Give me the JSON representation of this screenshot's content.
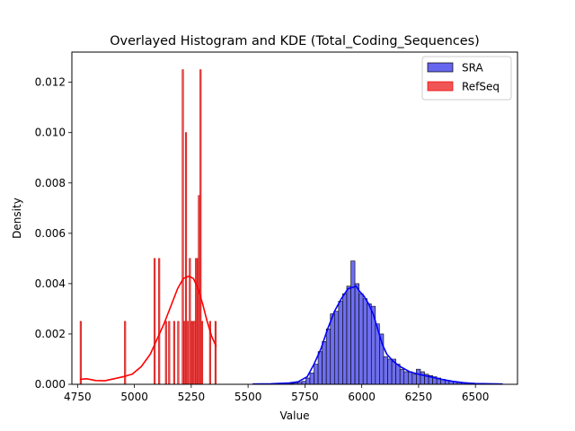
{
  "chart_data": {
    "type": "histogram+kde",
    "title": "Overlayed Histogram and KDE (Total_Coding_Sequences)",
    "xlabel": "Value",
    "ylabel": "Density",
    "xlim": [
      4725,
      6685
    ],
    "ylim": [
      0,
      0.0132
    ],
    "xticks": [
      4750,
      5000,
      5250,
      5500,
      5750,
      6000,
      6250,
      6500
    ],
    "xtick_labels": [
      "4750",
      "5000",
      "5250",
      "5500",
      "5750",
      "6000",
      "6250",
      "6500"
    ],
    "yticks": [
      0,
      0.002,
      0.004,
      0.006,
      0.008,
      0.01,
      0.012
    ],
    "ytick_labels": [
      "0.000",
      "0.002",
      "0.004",
      "0.006",
      "0.008",
      "0.010",
      "0.012"
    ],
    "grid": false,
    "legend_position": "top-right",
    "series": [
      {
        "name": "SRA",
        "color": "#0000ff",
        "bar_fill": "#6666ee",
        "bin_width": 18,
        "bins": [
          {
            "x0": 5520,
            "density": 1e-05
          },
          {
            "x0": 5538,
            "density": 1e-05
          },
          {
            "x0": 5556,
            "density": 1e-05
          },
          {
            "x0": 5574,
            "density": 1e-05
          },
          {
            "x0": 5592,
            "density": 1e-05
          },
          {
            "x0": 5610,
            "density": 1e-05
          },
          {
            "x0": 5628,
            "density": 1e-05
          },
          {
            "x0": 5646,
            "density": 2e-05
          },
          {
            "x0": 5664,
            "density": 2e-05
          },
          {
            "x0": 5682,
            "density": 3e-05
          },
          {
            "x0": 5700,
            "density": 5e-05
          },
          {
            "x0": 5718,
            "density": 8e-05
          },
          {
            "x0": 5736,
            "density": 0.00012
          },
          {
            "x0": 5754,
            "density": 0.00025
          },
          {
            "x0": 5772,
            "density": 0.00045
          },
          {
            "x0": 5790,
            "density": 0.0008
          },
          {
            "x0": 5808,
            "density": 0.0013
          },
          {
            "x0": 5826,
            "density": 0.0017
          },
          {
            "x0": 5844,
            "density": 0.0022
          },
          {
            "x0": 5862,
            "density": 0.0028
          },
          {
            "x0": 5880,
            "density": 0.0029
          },
          {
            "x0": 5898,
            "density": 0.0033
          },
          {
            "x0": 5916,
            "density": 0.0036
          },
          {
            "x0": 5934,
            "density": 0.0039
          },
          {
            "x0": 5952,
            "density": 0.0049
          },
          {
            "x0": 5970,
            "density": 0.004
          },
          {
            "x0": 5988,
            "density": 0.0036
          },
          {
            "x0": 6006,
            "density": 0.0034
          },
          {
            "x0": 6024,
            "density": 0.0032
          },
          {
            "x0": 6042,
            "density": 0.0031
          },
          {
            "x0": 6060,
            "density": 0.0024
          },
          {
            "x0": 6078,
            "density": 0.002
          },
          {
            "x0": 6096,
            "density": 0.0011
          },
          {
            "x0": 6114,
            "density": 0.001
          },
          {
            "x0": 6132,
            "density": 0.001
          },
          {
            "x0": 6150,
            "density": 0.0008
          },
          {
            "x0": 6168,
            "density": 0.0006
          },
          {
            "x0": 6186,
            "density": 0.0005
          },
          {
            "x0": 6204,
            "density": 0.0005
          },
          {
            "x0": 6222,
            "density": 0.0004
          },
          {
            "x0": 6240,
            "density": 0.0006
          },
          {
            "x0": 6258,
            "density": 0.0005
          },
          {
            "x0": 6276,
            "density": 0.0004
          },
          {
            "x0": 6294,
            "density": 0.00035
          },
          {
            "x0": 6312,
            "density": 0.0003
          },
          {
            "x0": 6330,
            "density": 0.00025
          },
          {
            "x0": 6348,
            "density": 0.0002
          },
          {
            "x0": 6366,
            "density": 0.00015
          },
          {
            "x0": 6384,
            "density": 0.00012
          },
          {
            "x0": 6402,
            "density": 0.0001
          },
          {
            "x0": 6420,
            "density": 8e-05
          },
          {
            "x0": 6438,
            "density": 7e-05
          },
          {
            "x0": 6456,
            "density": 6e-05
          },
          {
            "x0": 6474,
            "density": 5e-05
          },
          {
            "x0": 6492,
            "density": 4e-05
          },
          {
            "x0": 6510,
            "density": 3e-05
          },
          {
            "x0": 6528,
            "density": 3e-05
          },
          {
            "x0": 6546,
            "density": 2e-05
          },
          {
            "x0": 6564,
            "density": 2e-05
          },
          {
            "x0": 6582,
            "density": 1e-05
          },
          {
            "x0": 6600,
            "density": 1e-05
          }
        ],
        "kde": [
          [
            5520,
            1e-05
          ],
          [
            5600,
            2e-05
          ],
          [
            5680,
            5e-05
          ],
          [
            5720,
            0.0001
          ],
          [
            5760,
            0.0003
          ],
          [
            5790,
            0.0008
          ],
          [
            5820,
            0.0014
          ],
          [
            5850,
            0.0022
          ],
          [
            5880,
            0.0029
          ],
          [
            5910,
            0.0034
          ],
          [
            5940,
            0.0038
          ],
          [
            5960,
            0.00385
          ],
          [
            5975,
            0.0039
          ],
          [
            5990,
            0.0037
          ],
          [
            6010,
            0.0035
          ],
          [
            6030,
            0.0032
          ],
          [
            6050,
            0.0028
          ],
          [
            6070,
            0.0022
          ],
          [
            6090,
            0.0016
          ],
          [
            6110,
            0.0012
          ],
          [
            6140,
            0.0009
          ],
          [
            6170,
            0.0007
          ],
          [
            6210,
            0.0005
          ],
          [
            6250,
            0.0004
          ],
          [
            6300,
            0.0003
          ],
          [
            6350,
            0.0002
          ],
          [
            6400,
            0.00012
          ],
          [
            6450,
            6e-05
          ],
          [
            6500,
            3e-05
          ],
          [
            6560,
            2e-05
          ],
          [
            6620,
            1e-05
          ]
        ]
      },
      {
        "name": "RefSeq",
        "color": "#ff0000",
        "bar_fill": "#f05555",
        "bin_width": 6,
        "bins": [
          {
            "x0": 4761,
            "density": 0.0025
          },
          {
            "x0": 4956,
            "density": 0.0025
          },
          {
            "x0": 5086,
            "density": 0.005
          },
          {
            "x0": 5106,
            "density": 0.005
          },
          {
            "x0": 5136,
            "density": 0.0025
          },
          {
            "x0": 5150,
            "density": 0.0025
          },
          {
            "x0": 5172,
            "density": 0.0025
          },
          {
            "x0": 5190,
            "density": 0.0025
          },
          {
            "x0": 5210,
            "density": 0.0125
          },
          {
            "x0": 5217,
            "density": 0.0025
          },
          {
            "x0": 5224,
            "density": 0.01
          },
          {
            "x0": 5231,
            "density": 0.0025
          },
          {
            "x0": 5241,
            "density": 0.005
          },
          {
            "x0": 5248,
            "density": 0.0025
          },
          {
            "x0": 5256,
            "density": 0.0025
          },
          {
            "x0": 5262,
            "density": 0.0025
          },
          {
            "x0": 5268,
            "density": 0.005
          },
          {
            "x0": 5275,
            "density": 0.005
          },
          {
            "x0": 5281,
            "density": 0.0075
          },
          {
            "x0": 5288,
            "density": 0.0125
          },
          {
            "x0": 5295,
            "density": 0.0025
          },
          {
            "x0": 5330,
            "density": 0.0025
          },
          {
            "x0": 5354,
            "density": 0.0025
          }
        ],
        "kde": [
          [
            4761,
            0.0002
          ],
          [
            4790,
            0.00022
          ],
          [
            4830,
            0.00015
          ],
          [
            4870,
            0.00014
          ],
          [
            4910,
            0.00022
          ],
          [
            4950,
            0.0003
          ],
          [
            4990,
            0.0004
          ],
          [
            5030,
            0.0007
          ],
          [
            5070,
            0.0012
          ],
          [
            5100,
            0.0018
          ],
          [
            5130,
            0.0024
          ],
          [
            5160,
            0.0031
          ],
          [
            5190,
            0.0038
          ],
          [
            5215,
            0.0042
          ],
          [
            5240,
            0.0043
          ],
          [
            5260,
            0.0042
          ],
          [
            5280,
            0.0038
          ],
          [
            5300,
            0.0032
          ],
          [
            5320,
            0.0025
          ],
          [
            5340,
            0.0019
          ],
          [
            5360,
            0.0015
          ]
        ]
      }
    ]
  }
}
